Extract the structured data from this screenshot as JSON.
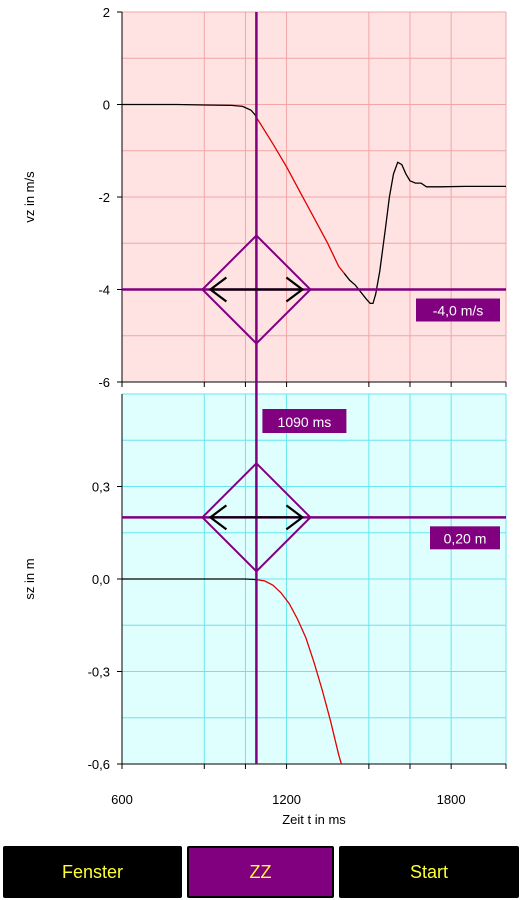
{
  "chart_data": [
    {
      "type": "line",
      "panel": "top",
      "ylabel": "vz in m/s",
      "xlim": [
        600,
        2000
      ],
      "ylim": [
        -6,
        2
      ],
      "x_ticks": [
        600,
        1200,
        1800
      ],
      "y_ticks": [
        2,
        0,
        -2,
        -4,
        -6
      ],
      "y_tick_labels": [
        "2",
        "0",
        "-2",
        "-4",
        "-6"
      ],
      "grid": true,
      "background_color": "#ffe3e3",
      "series": [
        {
          "color": "#000000",
          "points": [
            [
              600,
              0.0
            ],
            [
              800,
              0.0
            ],
            [
              900,
              -0.01
            ],
            [
              1000,
              -0.02
            ],
            [
              1040,
              -0.04
            ],
            [
              1070,
              -0.12
            ],
            [
              1085,
              -0.22
            ],
            [
              1090,
              -0.28
            ]
          ]
        },
        {
          "color": "#e00000",
          "points": [
            [
              1090,
              -0.28
            ],
            [
              1150,
              -0.85
            ],
            [
              1200,
              -1.35
            ],
            [
              1250,
              -1.9
            ],
            [
              1300,
              -2.45
            ],
            [
              1350,
              -3.0
            ],
            [
              1390,
              -3.5
            ],
            [
              1410,
              -3.65
            ]
          ]
        },
        {
          "color": "#000000",
          "points": [
            [
              1410,
              -3.65
            ],
            [
              1430,
              -3.8
            ],
            [
              1450,
              -3.9
            ],
            [
              1470,
              -4.05
            ],
            [
              1490,
              -4.2
            ],
            [
              1505,
              -4.3
            ],
            [
              1515,
              -4.3
            ],
            [
              1525,
              -4.1
            ],
            [
              1540,
              -3.6
            ],
            [
              1560,
              -2.7
            ],
            [
              1575,
              -2.0
            ],
            [
              1590,
              -1.5
            ],
            [
              1605,
              -1.25
            ],
            [
              1620,
              -1.3
            ],
            [
              1635,
              -1.5
            ],
            [
              1650,
              -1.65
            ],
            [
              1670,
              -1.7
            ],
            [
              1690,
              -1.7
            ],
            [
              1710,
              -1.78
            ],
            [
              1760,
              -1.78
            ],
            [
              1850,
              -1.77
            ],
            [
              2000,
              -1.77
            ]
          ]
        }
      ],
      "cursor_value_label": "-4,0 m/s",
      "cursor_y": -4.0
    },
    {
      "type": "line",
      "panel": "bottom",
      "ylabel": "sz in m",
      "xlabel": "Zeit t in ms",
      "xlim": [
        600,
        2000
      ],
      "ylim": [
        -0.6,
        0.6
      ],
      "x_ticks": [
        600,
        1200,
        1800
      ],
      "x_tick_labels": [
        "600",
        "1200",
        "1800"
      ],
      "y_ticks": [
        0.3,
        0.0,
        -0.3,
        -0.6
      ],
      "y_tick_labels": [
        "0,3",
        "0,0",
        "-0,3",
        "-0,6"
      ],
      "grid": true,
      "background_color": "#dfffff",
      "series": [
        {
          "color": "#000000",
          "points": [
            [
              600,
              0.0
            ],
            [
              900,
              0.0
            ],
            [
              1050,
              0.0
            ],
            [
              1090,
              -0.002
            ]
          ]
        },
        {
          "color": "#e00000",
          "points": [
            [
              1090,
              -0.002
            ],
            [
              1120,
              -0.006
            ],
            [
              1150,
              -0.02
            ],
            [
              1180,
              -0.045
            ],
            [
              1210,
              -0.08
            ],
            [
              1240,
              -0.13
            ],
            [
              1270,
              -0.19
            ],
            [
              1300,
              -0.27
            ],
            [
              1330,
              -0.36
            ],
            [
              1360,
              -0.46
            ],
            [
              1390,
              -0.57
            ],
            [
              1400,
              -0.6
            ]
          ]
        }
      ],
      "cursor_value_label": "0,20 m",
      "cursor_y": 0.2
    }
  ],
  "cursor": {
    "x": 1090,
    "x_label": "1090 ms",
    "color": "#800080"
  },
  "toolbar": {
    "fenster_label": "Fenster",
    "zz_label": "ZZ",
    "start_label": "Start",
    "text_color": "#ffff33"
  }
}
